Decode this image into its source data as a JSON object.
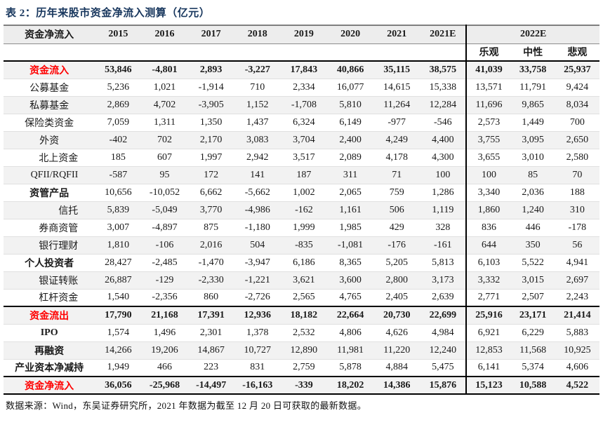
{
  "title": "表 2：历年来股市资金净流入测算（亿元）",
  "footer": "数据来源：Wind，东吴证券研究所，2021 年数据为截至 12 月 20 日可获取的最新数据。",
  "colors": {
    "title_navy": "#17365d",
    "highlight_red": "#ff0000",
    "header_bg": "#ededed",
    "stripe_bg": "#f2f2f2",
    "heavy_line": "#000000"
  },
  "chart_data": {
    "type": "table",
    "title": "表 2：历年来股市资金净流入测算（亿元）",
    "header_row1": [
      "资金净流入",
      "2015",
      "2016",
      "2017",
      "2018",
      "2019",
      "2020",
      "2021",
      "2021E",
      "2022E"
    ],
    "header_row2": [
      "乐观",
      "中性",
      "悲观"
    ],
    "rows": [
      {
        "label": "资金流入",
        "style": "red",
        "indent": 0,
        "values": [
          "53,846",
          "-4,801",
          "2,893",
          "-3,227",
          "17,843",
          "40,866",
          "35,115",
          "38,575",
          "41,039",
          "33,758",
          "25,937"
        ]
      },
      {
        "label": "公募基金",
        "style": "normal",
        "indent": 0,
        "values": [
          "5,236",
          "1,021",
          "-1,914",
          "710",
          "2,334",
          "16,077",
          "14,615",
          "15,338",
          "13,571",
          "11,791",
          "9,424"
        ]
      },
      {
        "label": "私募基金",
        "style": "normal",
        "indent": 0,
        "values": [
          "2,869",
          "4,702",
          "-3,905",
          "1,152",
          "-1,708",
          "5,810",
          "11,264",
          "12,284",
          "11,696",
          "9,865",
          "8,034"
        ]
      },
      {
        "label": "保险类资金",
        "style": "normal",
        "indent": 0,
        "values": [
          "7,059",
          "1,311",
          "1,350",
          "1,437",
          "6,324",
          "6,149",
          "-977",
          "-546",
          "2,573",
          "1,449",
          "700"
        ]
      },
      {
        "label": "外资",
        "style": "normal",
        "indent": 0,
        "values": [
          "-402",
          "702",
          "2,170",
          "3,083",
          "3,704",
          "2,400",
          "4,249",
          "4,400",
          "3,755",
          "3,095",
          "2,650"
        ]
      },
      {
        "label": "北上资金",
        "style": "normal",
        "indent": 1,
        "values": [
          "185",
          "607",
          "1,997",
          "2,942",
          "3,517",
          "2,089",
          "4,178",
          "4,300",
          "3,655",
          "3,010",
          "2,580"
        ]
      },
      {
        "label": "QFII/RQFII",
        "style": "normal",
        "indent": 1,
        "values": [
          "-587",
          "95",
          "172",
          "141",
          "187",
          "311",
          "71",
          "100",
          "100",
          "85",
          "70"
        ]
      },
      {
        "label": "资管产品",
        "style": "bold",
        "indent": 0,
        "values": [
          "10,656",
          "-10,052",
          "6,662",
          "-5,662",
          "1,002",
          "2,065",
          "759",
          "1,286",
          "3,340",
          "2,036",
          "188"
        ]
      },
      {
        "label": "信托",
        "style": "normal",
        "indent": 1,
        "values": [
          "5,839",
          "-5,049",
          "3,770",
          "-4,986",
          "-162",
          "1,161",
          "506",
          "1,119",
          "1,860",
          "1,240",
          "310"
        ]
      },
      {
        "label": "券商资管",
        "style": "normal",
        "indent": 1,
        "values": [
          "3,007",
          "-4,897",
          "875",
          "-1,180",
          "1,999",
          "1,985",
          "429",
          "328",
          "836",
          "446",
          "-178"
        ]
      },
      {
        "label": "银行理财",
        "style": "normal",
        "indent": 1,
        "values": [
          "1,810",
          "-106",
          "2,016",
          "504",
          "-835",
          "-1,081",
          "-176",
          "-161",
          "644",
          "350",
          "56"
        ]
      },
      {
        "label": "个人投资者",
        "style": "bold",
        "indent": 0,
        "values": [
          "28,427",
          "-2,485",
          "-1,470",
          "-3,947",
          "6,186",
          "8,365",
          "5,205",
          "5,813",
          "6,103",
          "5,522",
          "4,941"
        ]
      },
      {
        "label": "银证转账",
        "style": "normal",
        "indent": 1,
        "values": [
          "26,887",
          "-129",
          "-2,330",
          "-1,221",
          "3,621",
          "3,600",
          "2,800",
          "3,173",
          "3,332",
          "3,015",
          "2,697"
        ]
      },
      {
        "label": "杠杆资金",
        "style": "normal",
        "indent": 1,
        "values": [
          "1,540",
          "-2,356",
          "860",
          "-2,726",
          "2,565",
          "4,765",
          "2,405",
          "2,639",
          "2,771",
          "2,507",
          "2,243"
        ]
      },
      {
        "label": "资金流出",
        "style": "red",
        "indent": 0,
        "sep": true,
        "values": [
          "17,790",
          "21,168",
          "17,391",
          "12,936",
          "18,182",
          "22,664",
          "20,730",
          "22,699",
          "25,916",
          "23,171",
          "21,414"
        ]
      },
      {
        "label": "IPO",
        "style": "bold",
        "indent": 0,
        "values": [
          "1,574",
          "1,496",
          "2,301",
          "1,378",
          "2,532",
          "4,806",
          "4,626",
          "4,984",
          "6,921",
          "6,229",
          "5,883"
        ]
      },
      {
        "label": "再融资",
        "style": "bold",
        "indent": 0,
        "values": [
          "14,266",
          "19,206",
          "14,867",
          "10,727",
          "12,890",
          "11,981",
          "11,220",
          "12,240",
          "12,853",
          "11,568",
          "10,925"
        ]
      },
      {
        "label": "产业资本净减持",
        "style": "bold",
        "indent": 0,
        "values": [
          "1,949",
          "466",
          "223",
          "831",
          "2,759",
          "5,878",
          "4,884",
          "5,475",
          "6,141",
          "5,374",
          "4,606"
        ]
      },
      {
        "label": "资金净流入",
        "style": "red",
        "indent": 0,
        "sep": true,
        "values": [
          "36,056",
          "-25,968",
          "-14,497",
          "-16,163",
          "-339",
          "18,202",
          "14,386",
          "15,876",
          "15,123",
          "10,588",
          "4,522"
        ]
      }
    ]
  }
}
